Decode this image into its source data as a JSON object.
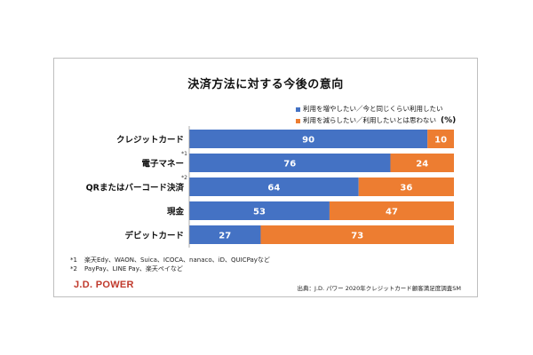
{
  "chart_data": {
    "type": "bar",
    "orientation": "horizontal",
    "stacked": true,
    "title": "決済方法に対する今後の意向",
    "unit": "(%)",
    "categories": [
      "クレジットカード",
      "電子マネー",
      "QRまたはバーコード決済",
      "現金",
      "デビットカード"
    ],
    "category_notes": [
      "",
      "*1",
      "*2",
      "",
      ""
    ],
    "series": [
      {
        "name": "利用を増やしたい／今と同じくらい利用したい",
        "values": [
          90,
          76,
          64,
          53,
          27
        ],
        "color": "#4472c4"
      },
      {
        "name": "利用を減らしたい／利用したいとは思わない",
        "values": [
          10,
          24,
          36,
          47,
          73
        ],
        "color": "#ed7d31"
      }
    ],
    "xlim": [
      0,
      100
    ],
    "grid": false,
    "legend_position": "top-right"
  },
  "notes": [
    {
      "key": "*1",
      "text": "楽天Edy、WAON、Suica、ICOCA、nanaco、iD、QUICPayなど"
    },
    {
      "key": "*2",
      "text": "PayPay、LINE Pay、楽天ペイなど"
    }
  ],
  "logo": "J.D. POWER",
  "source": "出典：J.D. パワー 2020年クレジットカード顧客満足度調査SM"
}
